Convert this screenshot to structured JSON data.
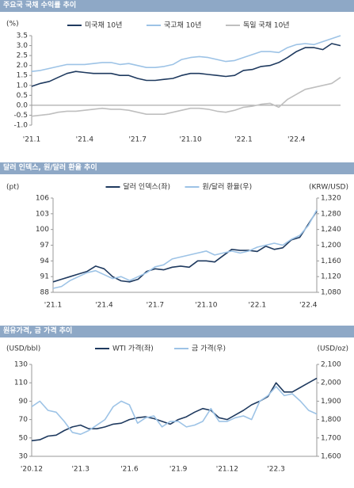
{
  "chart_data": [
    {
      "type": "line",
      "title": "주요국 국채 수익률 추이",
      "y_label": "(%)",
      "legend": "top",
      "grid": false,
      "categories": [
        "'21.1",
        null,
        null,
        null,
        null,
        null,
        "'21.4",
        null,
        null,
        null,
        null,
        null,
        "'21.7",
        null,
        null,
        null,
        null,
        null,
        "'21.10",
        null,
        null,
        null,
        null,
        null,
        "'22.1",
        null,
        null,
        null,
        null,
        null,
        "'22.4",
        null,
        null,
        null,
        null,
        null
      ],
      "ylim": [
        -1,
        3.5
      ],
      "yticks": [
        3.5,
        {
          "value": 3,
          "label": "3.0"
        },
        2.5,
        {
          "value": 2,
          "label": "2.0"
        },
        1.5,
        {
          "value": 1,
          "label": "1.0"
        },
        0.5,
        {
          "value": 0,
          "label": "0.0"
        },
        -0.5,
        {
          "value": -1,
          "label": "-1.0"
        }
      ],
      "series": [
        {
          "name": "미국채 10년",
          "color": "#1f3a5f",
          "values": [
            0.95,
            1.1,
            1.2,
            1.4,
            1.6,
            1.7,
            1.65,
            1.6,
            1.6,
            1.6,
            1.5,
            1.5,
            1.35,
            1.25,
            1.25,
            1.3,
            1.35,
            1.5,
            1.6,
            1.6,
            1.55,
            1.5,
            1.45,
            1.5,
            1.75,
            1.8,
            1.95,
            2.0,
            2.15,
            2.4,
            2.7,
            2.9,
            2.9,
            2.8,
            3.1,
            3.0
          ]
        },
        {
          "name": "국고채 10년",
          "color": "#9dc3e6",
          "values": [
            1.7,
            1.75,
            1.85,
            1.95,
            2.05,
            2.05,
            2.05,
            2.1,
            2.15,
            2.15,
            2.05,
            2.1,
            2.0,
            1.9,
            1.9,
            1.95,
            2.05,
            2.3,
            2.4,
            2.45,
            2.4,
            2.3,
            2.2,
            2.25,
            2.4,
            2.55,
            2.7,
            2.7,
            2.65,
            2.9,
            3.05,
            3.1,
            3.05,
            3.2,
            3.35,
            3.5
          ]
        },
        {
          "name": "독일 국채 10년",
          "color": "#bfbfbf",
          "values": [
            -0.55,
            -0.5,
            -0.45,
            -0.35,
            -0.3,
            -0.3,
            -0.25,
            -0.2,
            -0.15,
            -0.2,
            -0.2,
            -0.25,
            -0.35,
            -0.45,
            -0.45,
            -0.45,
            -0.35,
            -0.25,
            -0.15,
            -0.15,
            -0.2,
            -0.3,
            -0.35,
            -0.25,
            -0.1,
            -0.05,
            0.05,
            0.1,
            -0.1,
            0.3,
            0.55,
            0.8,
            0.9,
            1.0,
            1.1,
            1.4
          ]
        }
      ]
    },
    {
      "type": "line",
      "title": "달러 인덱스, 원/달러 환율 추이",
      "y_label": "(pt)",
      "y2_label": "(KRW/USD)",
      "legend": "top",
      "grid": false,
      "categories": [
        "'21.1",
        null,
        null,
        null,
        null,
        null,
        "'21.4",
        null,
        null,
        null,
        null,
        null,
        "'21.7",
        null,
        null,
        null,
        null,
        null,
        "'21.10",
        null,
        null,
        null,
        null,
        null,
        "'22.1",
        null,
        null,
        null,
        null,
        null,
        "'22.4",
        null
      ],
      "ylim": [
        88,
        106
      ],
      "yticks": [
        106,
        103,
        100,
        97,
        94,
        91,
        88
      ],
      "y2lim": [
        1080,
        1320
      ],
      "y2ticks": [
        {
          "value": 1320,
          "label": "1,320"
        },
        {
          "value": 1280,
          "label": "1,280"
        },
        {
          "value": 1240,
          "label": "1,240"
        },
        {
          "value": 1200,
          "label": "1,200"
        },
        {
          "value": 1160,
          "label": "1,160"
        },
        {
          "value": 1120,
          "label": "1,120"
        },
        {
          "value": 1080,
          "label": "1,080"
        }
      ],
      "series": [
        {
          "name": "달러 인덱스(좌)",
          "color": "#1f3a5f",
          "values": [
            90,
            90.5,
            91,
            91.5,
            92,
            93,
            92.5,
            91,
            90.2,
            90,
            90.5,
            92,
            92.5,
            92.3,
            92.8,
            93,
            92.8,
            94,
            94,
            93.8,
            95,
            96.2,
            96,
            96,
            95.8,
            96.8,
            96.2,
            96.5,
            98,
            98.5,
            101,
            103.5
          ]
        },
        {
          "name": "원/달러 환율(우)",
          "color": "#9dc3e6",
          "axis": "y2",
          "values": [
            1090,
            1095,
            1110,
            1120,
            1130,
            1135,
            1125,
            1115,
            1120,
            1110,
            1120,
            1130,
            1145,
            1150,
            1165,
            1170,
            1175,
            1180,
            1185,
            1175,
            1180,
            1185,
            1180,
            1185,
            1195,
            1200,
            1205,
            1200,
            1215,
            1225,
            1250,
            1290
          ]
        }
      ]
    },
    {
      "type": "line",
      "title": "원유가격, 금 가격 추이",
      "y_label": "(USD/bbl)",
      "y2_label": "(USD/oz)",
      "legend": "top",
      "grid": false,
      "categories": [
        "'20.12",
        null,
        null,
        null,
        null,
        null,
        "'21.3",
        null,
        null,
        null,
        null,
        null,
        "'21.6",
        null,
        null,
        null,
        null,
        null,
        "'21.9",
        null,
        null,
        null,
        null,
        null,
        "'21.12",
        null,
        null,
        null,
        null,
        null,
        "'22.3",
        null,
        null,
        null,
        null,
        null
      ],
      "ylim": [
        30,
        130
      ],
      "yticks": [
        130,
        110,
        90,
        70,
        50,
        30
      ],
      "y2lim": [
        1600,
        2100
      ],
      "y2ticks": [
        {
          "value": 2100,
          "label": "2,100"
        },
        {
          "value": 2000,
          "label": "2,000"
        },
        {
          "value": 1900,
          "label": "1,900"
        },
        {
          "value": 1800,
          "label": "1,800"
        },
        {
          "value": 1700,
          "label": "1,700"
        },
        {
          "value": 1600,
          "label": "1,600"
        }
      ],
      "series": [
        {
          "name": "WTI 가격(좌)",
          "color": "#1f3a5f",
          "values": [
            47,
            48,
            52,
            53,
            58,
            62,
            64,
            60,
            60,
            62,
            65,
            66,
            70,
            72,
            73,
            71,
            68,
            65,
            70,
            73,
            78,
            82,
            80,
            72,
            70,
            75,
            80,
            86,
            90,
            95,
            110,
            100,
            100,
            105,
            110,
            115
          ]
        },
        {
          "name": "금 가격(우)",
          "color": "#9dc3e6",
          "axis": "y2",
          "values": [
            1870,
            1900,
            1850,
            1840,
            1790,
            1730,
            1720,
            1740,
            1770,
            1800,
            1870,
            1900,
            1880,
            1780,
            1810,
            1820,
            1760,
            1790,
            1790,
            1760,
            1770,
            1790,
            1860,
            1790,
            1790,
            1810,
            1820,
            1800,
            1900,
            1930,
            1980,
            1930,
            1940,
            1900,
            1850,
            1830
          ]
        }
      ]
    }
  ]
}
